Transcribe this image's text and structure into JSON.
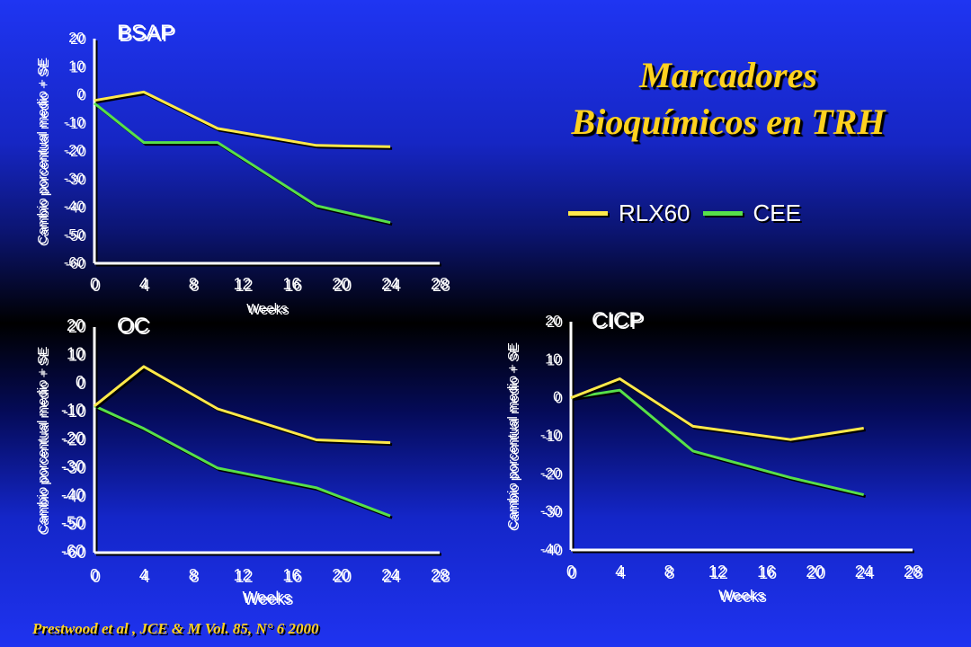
{
  "title_line1": "Marcadores",
  "title_line2": "Bioquímicos en TRH",
  "legend": [
    {
      "label": "RLX60",
      "color": "#ffe94a"
    },
    {
      "label": "CEE",
      "color": "#57e04a"
    }
  ],
  "citation": "Prestwood et al , JCE & M Vol. 85, N° 6  2000",
  "chart_data": [
    {
      "type": "line",
      "title": "BSAP",
      "xlabel": "Weeks",
      "ylabel": "Cambio porcentual medio + SE",
      "xlim": [
        0,
        28
      ],
      "ylim": [
        -60,
        20
      ],
      "xticks": [
        "0",
        "4",
        "8",
        "12",
        "16",
        "20",
        "24",
        "28"
      ],
      "yticks": [
        "20",
        "10",
        "0",
        "-10",
        "-20",
        "-30",
        "-40",
        "-50",
        "-60"
      ],
      "series": [
        {
          "name": "RLX60",
          "color": "#ffe94a",
          "x": [
            0,
            4,
            10,
            18,
            24
          ],
          "y": [
            -2,
            1,
            -12,
            -18,
            -18.5
          ]
        },
        {
          "name": "CEE",
          "color": "#57e04a",
          "x": [
            0,
            4,
            10,
            18,
            24
          ],
          "y": [
            -3,
            -17,
            -17,
            -39.5,
            -45.5
          ]
        }
      ]
    },
    {
      "type": "line",
      "title": "OC",
      "xlabel": "Weeks",
      "ylabel": "Cambio porcentual medio + SE",
      "xlim": [
        0,
        28
      ],
      "ylim": [
        -60,
        20
      ],
      "xticks": [
        "0",
        "4",
        "8",
        "12",
        "16",
        "20",
        "24",
        "28"
      ],
      "yticks": [
        "20",
        "10",
        "0",
        "-10",
        "-20",
        "-30",
        "-40",
        "-50",
        "-60"
      ],
      "series": [
        {
          "name": "RLX60",
          "color": "#ffe94a",
          "x": [
            0,
            4,
            10,
            18,
            24
          ],
          "y": [
            -8,
            6,
            -9,
            -20,
            -21
          ]
        },
        {
          "name": "CEE",
          "color": "#57e04a",
          "x": [
            0,
            4,
            10,
            18,
            24
          ],
          "y": [
            -8,
            -16,
            -30,
            -37,
            -47
          ]
        }
      ]
    },
    {
      "type": "line",
      "title": "CICP",
      "xlabel": "Weeks",
      "ylabel": "Cambio porcentual medio + SE",
      "xlim": [
        0,
        28
      ],
      "ylim": [
        -40,
        20
      ],
      "xticks": [
        "0",
        "4",
        "8",
        "12",
        "16",
        "20",
        "24",
        "28"
      ],
      "yticks": [
        "20",
        "10",
        "0",
        "-10",
        "-20",
        "-30",
        "-40"
      ],
      "series": [
        {
          "name": "RLX60",
          "color": "#ffe94a",
          "x": [
            0,
            4,
            10,
            18,
            24
          ],
          "y": [
            0,
            5,
            -7.5,
            -11,
            -8
          ]
        },
        {
          "name": "CEE",
          "color": "#57e04a",
          "x": [
            0,
            4,
            10,
            18,
            24
          ],
          "y": [
            0,
            2,
            -14,
            -21,
            -25.5
          ]
        }
      ]
    }
  ]
}
